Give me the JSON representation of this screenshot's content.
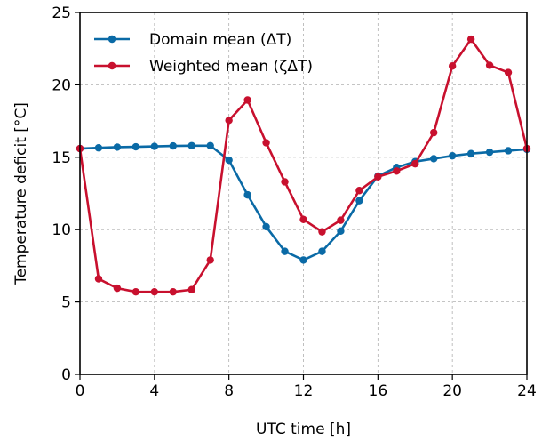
{
  "chart_data": {
    "type": "line",
    "xlabel": "UTC time [h]",
    "ylabel": "Temperature deficit [°C]",
    "xlim": [
      0,
      24
    ],
    "ylim": [
      0,
      25
    ],
    "xticks": [
      0,
      4,
      8,
      12,
      16,
      20,
      24
    ],
    "yticks": [
      0,
      5,
      10,
      15,
      20,
      25
    ],
    "grid": true,
    "legend": "top-left",
    "x": [
      0,
      1,
      2,
      3,
      4,
      5,
      6,
      7,
      8,
      9,
      10,
      11,
      12,
      13,
      14,
      15,
      16,
      17,
      18,
      19,
      20,
      21,
      22,
      23,
      24
    ],
    "series": [
      {
        "name": "Domain mean (ΔT)",
        "color": "#0a6aa6",
        "values": [
          15.6,
          15.65,
          15.7,
          15.72,
          15.75,
          15.78,
          15.8,
          15.8,
          14.8,
          12.4,
          10.2,
          8.5,
          7.9,
          8.5,
          9.9,
          12.0,
          13.7,
          14.3,
          14.7,
          14.9,
          15.1,
          15.25,
          15.35,
          15.45,
          15.55
        ]
      },
      {
        "name": "Weighted mean (ζΔT)",
        "color": "#c8102e",
        "values": [
          15.6,
          6.6,
          5.95,
          5.7,
          5.7,
          5.7,
          5.85,
          7.9,
          17.55,
          18.95,
          16.0,
          13.3,
          10.7,
          9.85,
          10.65,
          12.7,
          13.65,
          14.05,
          14.55,
          16.7,
          21.3,
          23.15,
          21.35,
          20.85,
          15.6
        ]
      }
    ]
  }
}
